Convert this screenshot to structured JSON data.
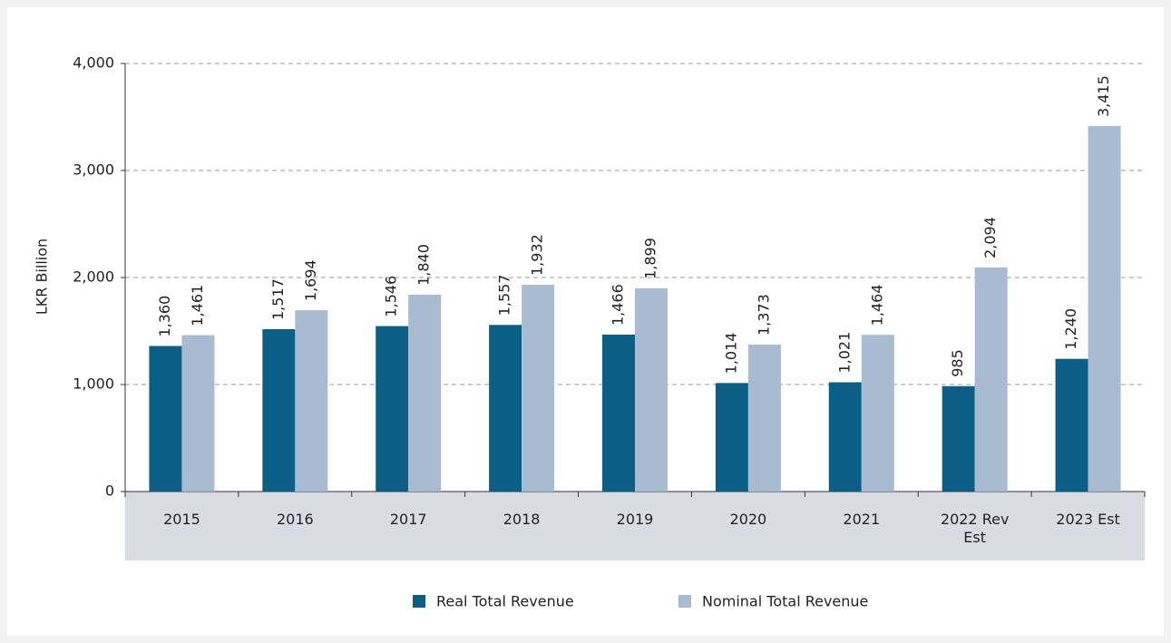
{
  "chart_data": {
    "type": "bar",
    "ylabel": "LKR Billion",
    "categories": [
      "2015",
      "2016",
      "2017",
      "2018",
      "2019",
      "2020",
      "2021",
      "2022 Rev Est",
      "2023 Est"
    ],
    "series": [
      {
        "name": "Real Total Revenue",
        "color": "#0b5e85",
        "values": [
          1360,
          1517,
          1546,
          1557,
          1466,
          1014,
          1021,
          985,
          1240
        ],
        "value_labels": [
          "1,360",
          "1,517",
          "1,546",
          "1,557",
          "1,466",
          "1,014",
          "1,021",
          "985",
          "1,240"
        ]
      },
      {
        "name": "Nominal Total Revenue",
        "color": "#a8bbd1",
        "values": [
          1461,
          1694,
          1840,
          1932,
          1899,
          1373,
          1464,
          2094,
          3415
        ],
        "value_labels": [
          "1,461",
          "1,694",
          "1,840",
          "1,932",
          "1,899",
          "1,373",
          "1,464",
          "2,094",
          "3,415"
        ]
      }
    ],
    "ylim": [
      0,
      4000
    ],
    "yticks": [
      0,
      {
        "value": 1000,
        "label": "1,000"
      },
      {
        "value": 2000,
        "label": "2,000"
      },
      {
        "value": 3000,
        "label": "3,000"
      },
      {
        "value": 4000,
        "label": "4,000"
      }
    ],
    "grid": true,
    "legend": "bottom"
  }
}
